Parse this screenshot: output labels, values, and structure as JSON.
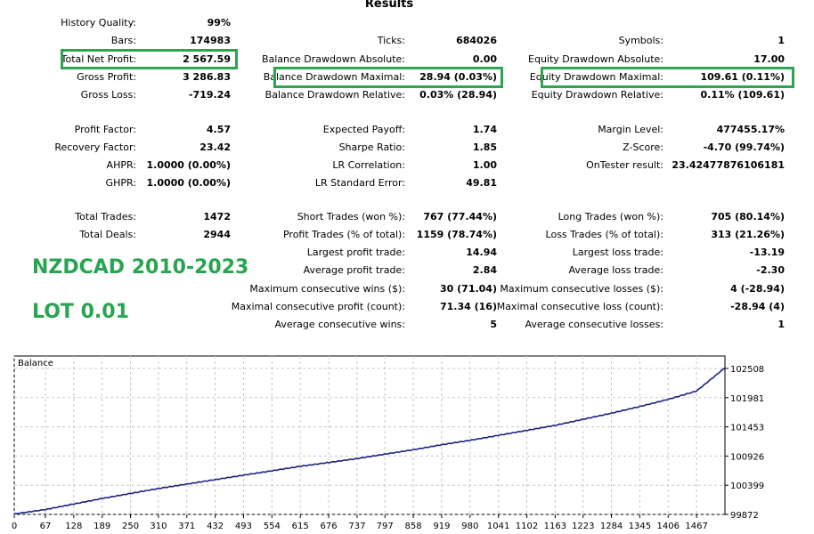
{
  "title": "Results",
  "col1": {
    "rows": [
      {
        "label": "History Quality:",
        "value": "99%"
      },
      {
        "label": "Bars:",
        "value": "174983"
      },
      {
        "label": "Total Net Profit:",
        "value": "2 567.59"
      },
      {
        "label": "Gross Profit:",
        "value": "3 286.83"
      },
      {
        "label": "Gross Loss:",
        "value": "-719.24"
      },
      {
        "label": "Profit Factor:",
        "value": "4.57"
      },
      {
        "label": "Recovery Factor:",
        "value": "23.42"
      },
      {
        "label": "AHPR:",
        "value": "1.0000 (0.00%)"
      },
      {
        "label": "GHPR:",
        "value": "1.0000 (0.00%)"
      },
      {
        "label": "Total Trades:",
        "value": "1472"
      },
      {
        "label": "Total Deals:",
        "value": "2944"
      }
    ]
  },
  "col2": {
    "rows": [
      {
        "label": "Ticks:",
        "value": "684026"
      },
      {
        "label": "Balance Drawdown Absolute:",
        "value": "0.00"
      },
      {
        "label": "Balance Drawdown Maximal:",
        "value": "28.94 (0.03%)"
      },
      {
        "label": "Balance Drawdown Relative:",
        "value": "0.03% (28.94)"
      },
      {
        "label": "Expected Payoff:",
        "value": "1.74"
      },
      {
        "label": "Sharpe Ratio:",
        "value": "1.85"
      },
      {
        "label": "LR Correlation:",
        "value": "1.00"
      },
      {
        "label": "LR Standard Error:",
        "value": "49.81"
      },
      {
        "label": "Short Trades (won %):",
        "value": "767 (77.44%)"
      },
      {
        "label": "Profit Trades (% of total):",
        "value": "1159 (78.74%)"
      },
      {
        "label": "Largest profit trade:",
        "value": "14.94"
      },
      {
        "label": "Average profit trade:",
        "value": "2.84"
      },
      {
        "label": "Maximum consecutive wins ($):",
        "value": "30 (71.04)"
      },
      {
        "label": "Maximal consecutive profit (count):",
        "value": "71.34 (16)"
      },
      {
        "label": "Average consecutive wins:",
        "value": "5"
      }
    ]
  },
  "col3": {
    "rows": [
      {
        "label": "Symbols:",
        "value": "1"
      },
      {
        "label": "Equity Drawdown Absolute:",
        "value": "17.00"
      },
      {
        "label": "Equity Drawdown Maximal:",
        "value": "109.61 (0.11%)"
      },
      {
        "label": "Equity Drawdown Relative:",
        "value": "0.11% (109.61)"
      },
      {
        "label": "Margin Level:",
        "value": "477455.17%"
      },
      {
        "label": "Z-Score:",
        "value": "-4.70 (99.74%)"
      },
      {
        "label": "OnTester result:",
        "value": "23.42477876106181"
      },
      {
        "label": "Long Trades (won %):",
        "value": "705 (80.14%)"
      },
      {
        "label": "Loss Trades (% of total):",
        "value": "313 (21.26%)"
      },
      {
        "label": "Largest loss trade:",
        "value": "-13.19"
      },
      {
        "label": "Average loss trade:",
        "value": "-2.30"
      },
      {
        "label": "Maximum consecutive losses ($):",
        "value": "4 (-28.94)"
      },
      {
        "label": "Maximal consecutive loss (count):",
        "value": "-28.94 (4)"
      },
      {
        "label": "Average consecutive losses:",
        "value": "1"
      }
    ]
  },
  "overlay": {
    "line1": "NZDCAD 2010-2023",
    "line2": "LOT 0.01"
  },
  "highlight_color": "#2ea44f",
  "chart_data": {
    "type": "line",
    "title": "Balance",
    "x_ticks": [
      "0",
      "67",
      "128",
      "189",
      "250",
      "310",
      "371",
      "432",
      "493",
      "554",
      "615",
      "676",
      "737",
      "797",
      "858",
      "919",
      "980",
      "1041",
      "1102",
      "1163",
      "1223",
      "1284",
      "1345",
      "1406",
      "1467"
    ],
    "y_ticks": [
      "102508",
      "101981",
      "101453",
      "100926",
      "100399",
      "99872"
    ],
    "xlim": [
      0,
      1528
    ],
    "ylim": [
      99872,
      102508
    ],
    "series": [
      {
        "x": [
          0,
          67,
          128,
          189,
          250,
          310,
          371,
          432,
          493,
          554,
          615,
          676,
          737,
          797,
          858,
          919,
          980,
          1041,
          1102,
          1163,
          1223,
          1284,
          1345,
          1406,
          1467,
          1528
        ],
        "values": [
          99880,
          99960,
          100060,
          100160,
          100250,
          100340,
          100420,
          100500,
          100580,
          100660,
          100740,
          100810,
          100880,
          100960,
          101040,
          101130,
          101210,
          101300,
          101390,
          101480,
          101590,
          101700,
          101820,
          101950,
          102100,
          102520
        ]
      }
    ],
    "line_color": "#1a237e",
    "grid": true
  }
}
